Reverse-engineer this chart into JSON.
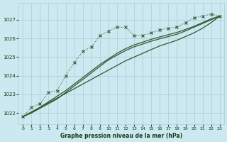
{
  "background_color": "#cce8f0",
  "grid_color": "#aaccd4",
  "line_color": "#2d5a2d",
  "xlabel": "Graphe pression niveau de la mer (hPa)",
  "xlabel_color": "#1a3a1a",
  "ylabel_ticks": [
    1022,
    1023,
    1024,
    1025,
    1026,
    1027
  ],
  "xticks": [
    0,
    1,
    2,
    3,
    4,
    5,
    6,
    7,
    8,
    9,
    10,
    11,
    12,
    13,
    14,
    15,
    16,
    17,
    18,
    19,
    20,
    21,
    22,
    23
  ],
  "xlim": [
    -0.5,
    23.5
  ],
  "ylim": [
    1021.4,
    1027.9
  ],
  "main_line": [
    1021.8,
    1022.3,
    1022.5,
    1023.1,
    1023.2,
    1024.0,
    1024.7,
    1025.3,
    1025.55,
    1026.15,
    1026.4,
    1026.6,
    1026.6,
    1026.15,
    1026.15,
    1026.3,
    1026.45,
    1026.55,
    1026.6,
    1026.85,
    1027.1,
    1027.2,
    1027.3,
    1027.2
  ],
  "smooth1": [
    1021.8,
    1022.0,
    1022.25,
    1022.5,
    1022.75,
    1023.1,
    1023.45,
    1023.8,
    1024.15,
    1024.5,
    1024.85,
    1025.1,
    1025.35,
    1025.55,
    1025.7,
    1025.85,
    1025.98,
    1026.1,
    1026.22,
    1026.4,
    1026.6,
    1026.8,
    1027.0,
    1027.2
  ],
  "smooth2": [
    1021.8,
    1022.05,
    1022.3,
    1022.6,
    1022.9,
    1023.2,
    1023.55,
    1023.9,
    1024.25,
    1024.6,
    1024.9,
    1025.2,
    1025.45,
    1025.65,
    1025.8,
    1025.95,
    1026.08,
    1026.2,
    1026.32,
    1026.48,
    1026.65,
    1026.85,
    1027.05,
    1027.2
  ],
  "straight_line": [
    1021.8,
    1022.05,
    1022.3,
    1022.55,
    1022.8,
    1023.05,
    1023.3,
    1023.55,
    1023.8,
    1024.05,
    1024.3,
    1024.55,
    1024.8,
    1025.0,
    1025.2,
    1025.4,
    1025.6,
    1025.75,
    1025.9,
    1026.1,
    1026.3,
    1026.55,
    1026.85,
    1027.2
  ]
}
